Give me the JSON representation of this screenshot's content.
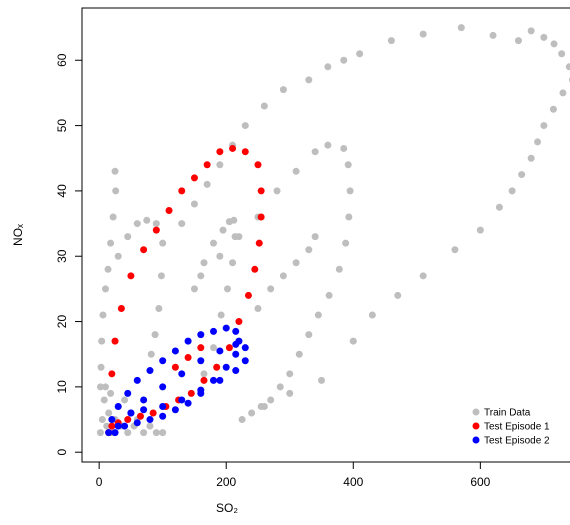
{
  "chart_data": {
    "type": "scatter",
    "x_label": "SO₂",
    "y_label": "NOₓ",
    "xlim": [
      -27,
      760
    ],
    "ylim": [
      -1.5,
      68
    ],
    "xticks": [
      0,
      200,
      400,
      600
    ],
    "yticks": [
      0,
      10,
      20,
      30,
      40,
      50,
      60
    ],
    "legend": "bottom-right",
    "series": [
      {
        "name": "Train Data",
        "color": "#bebebe",
        "x": [
          2,
          5,
          8,
          10,
          12,
          15,
          18,
          20,
          25,
          30,
          35,
          40,
          45,
          50,
          55,
          60,
          70,
          80,
          90,
          100,
          25,
          26,
          22,
          18,
          14,
          10,
          6,
          4,
          3,
          2,
          30,
          45,
          60,
          75,
          90,
          100,
          98,
          94,
          88,
          82,
          150,
          165,
          180,
          195,
          205,
          212,
          214,
          210,
          202,
          192,
          180,
          165,
          160,
          190,
          220,
          250,
          280,
          310,
          340,
          360,
          385,
          392,
          395,
          393,
          388,
          378,
          362,
          345,
          330,
          315,
          300,
          285,
          270,
          255,
          240,
          225,
          260,
          300,
          350,
          400,
          430,
          470,
          510,
          560,
          600,
          630,
          650,
          665,
          680,
          690,
          700,
          715,
          730,
          745,
          740,
          728,
          716,
          700,
          680,
          660,
          620,
          570,
          510,
          460,
          410,
          385,
          360,
          330,
          290,
          260,
          230,
          210,
          190,
          170,
          150,
          130,
          250,
          270,
          290,
          310,
          330,
          340
        ],
        "values": [
          3,
          5,
          8,
          10,
          4,
          6,
          9,
          3,
          5,
          7,
          4,
          8,
          3,
          6,
          4,
          5,
          3,
          4,
          3,
          3,
          43,
          40,
          36,
          32,
          28,
          25,
          21,
          17,
          13,
          10,
          30,
          33,
          35,
          35.5,
          35,
          32,
          27,
          22,
          18,
          15,
          25,
          29,
          32,
          34,
          35.3,
          35.5,
          33,
          29,
          25,
          21,
          16,
          12,
          27,
          30,
          33,
          36,
          40,
          43,
          46,
          47,
          46.5,
          44,
          40,
          36,
          32,
          28,
          24,
          21,
          18,
          15,
          12,
          10,
          8,
          7,
          6,
          5,
          7,
          9,
          11,
          17,
          21,
          24,
          27,
          31,
          34,
          37.5,
          40,
          42.5,
          45,
          47.5,
          50,
          52.5,
          55,
          57,
          59,
          61,
          62.5,
          63.5,
          64.5,
          63,
          63.8,
          65,
          64,
          63,
          61,
          60,
          59,
          57,
          55.5,
          53,
          50,
          47,
          44,
          41,
          38,
          35,
          22,
          25,
          27,
          29,
          31,
          33
        ]
      },
      {
        "name": "Test Episode 1",
        "color": "#ff0000",
        "x": [
          15,
          20,
          25,
          35,
          50,
          70,
          90,
          110,
          130,
          150,
          170,
          190,
          210,
          230,
          250,
          255,
          255,
          252,
          245,
          235,
          220,
          205,
          185,
          165,
          145,
          125,
          105,
          85,
          65,
          45,
          30,
          20,
          120,
          140,
          160
        ],
        "values": [
          3,
          12,
          17,
          22,
          27,
          31,
          34,
          37,
          40,
          42,
          44,
          46,
          46.5,
          46,
          44,
          40,
          36,
          32,
          28,
          24,
          20,
          16,
          13,
          11,
          9,
          8,
          7,
          6,
          5.5,
          5,
          4.5,
          4,
          13,
          14.5,
          16
        ]
      },
      {
        "name": "Test Episode 2",
        "color": "#0000ff",
        "x": [
          15,
          20,
          30,
          45,
          60,
          80,
          100,
          120,
          140,
          160,
          180,
          200,
          215,
          220,
          215,
          200,
          180,
          160,
          140,
          120,
          100,
          80,
          60,
          40,
          25,
          30,
          50,
          70,
          100,
          130,
          160,
          190,
          215,
          230,
          230,
          215,
          190,
          160,
          130,
          100,
          70,
          50
        ],
        "values": [
          3,
          5,
          7,
          9,
          11,
          12.5,
          14,
          15.5,
          17,
          18,
          18.5,
          19,
          18.5,
          17,
          15,
          13,
          11,
          9,
          7.5,
          6.5,
          5.5,
          5,
          4.5,
          4,
          3,
          4,
          6,
          8,
          10,
          12,
          14,
          15.5,
          16.5,
          16,
          14,
          12.5,
          11,
          9.5,
          8,
          7,
          6.5,
          6
        ]
      }
    ]
  }
}
